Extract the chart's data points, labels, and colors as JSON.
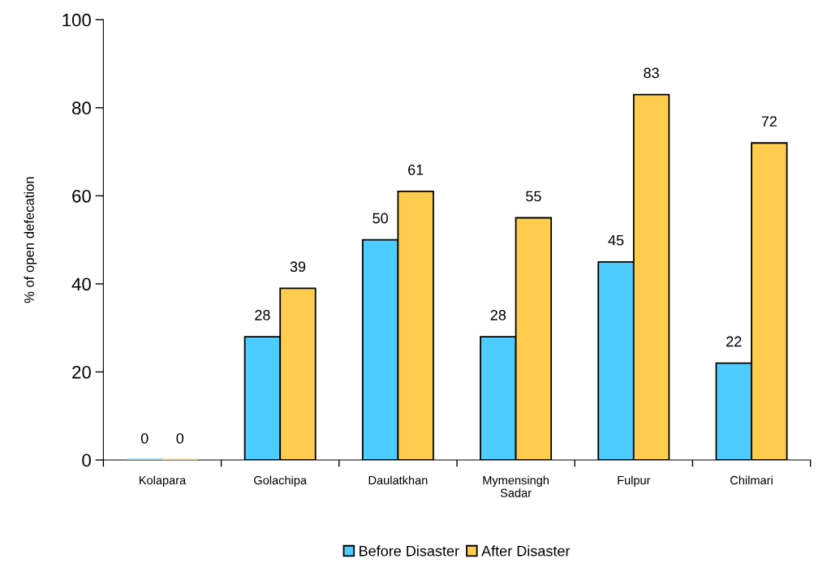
{
  "chart_data": {
    "type": "bar",
    "ylabel": "% of open defecation",
    "categories": [
      "Kolapara",
      "Golachipa",
      "Daulatkhan",
      "Mymensingh\nSadar",
      "Fulpur",
      "Chilmari"
    ],
    "series": [
      {
        "name": "Before Disaster",
        "color": "#4dccff",
        "values": [
          0,
          28,
          50,
          28,
          45,
          22
        ]
      },
      {
        "name": "After Disaster",
        "color": "#ffcc4d",
        "values": [
          0,
          39,
          61,
          55,
          83,
          72
        ]
      }
    ],
    "ylim": [
      0,
      100
    ],
    "yticks": [
      0,
      20,
      40,
      60,
      80,
      100
    ],
    "data_labels": true,
    "legend": "bottom",
    "grid": false
  }
}
